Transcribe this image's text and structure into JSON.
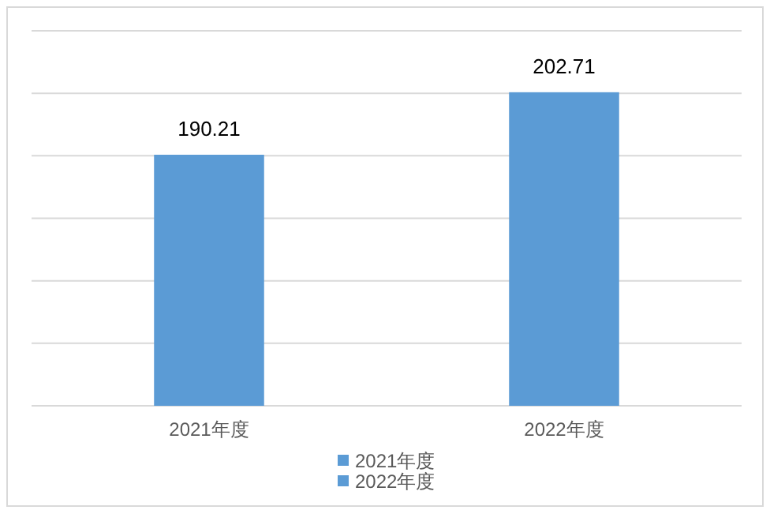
{
  "chart_data": {
    "type": "bar",
    "categories": [
      "2021年度",
      "2022年度"
    ],
    "series": [
      {
        "name": "2021年度",
        "color": "#5b9bd5",
        "values": [
          190.21,
          null
        ]
      },
      {
        "name": "2022年度",
        "color": "#5b9bd5",
        "values": [
          null,
          202.71
        ]
      }
    ],
    "ylim": [
      140,
      215
    ],
    "yticks": [
      {
        "value": 140,
        "label": null
      },
      {
        "value": 152.5,
        "label": null
      },
      {
        "value": 165,
        "label": null
      },
      {
        "value": 177.5,
        "label": null
      },
      {
        "value": 190,
        "label": null
      },
      {
        "value": 202.5,
        "label": null
      },
      {
        "value": 215,
        "label": null
      }
    ],
    "grid": "y",
    "legend": "bottom",
    "data_labels": true
  }
}
